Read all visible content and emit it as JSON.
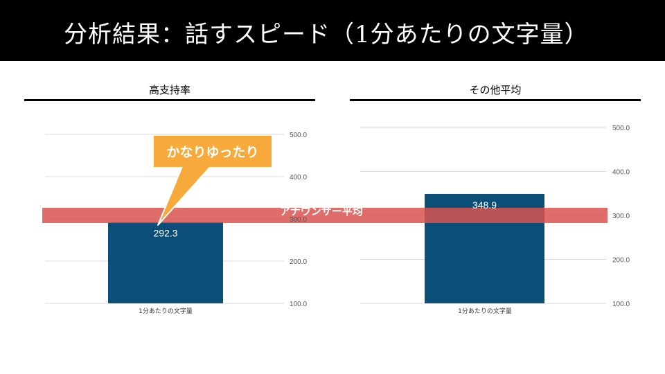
{
  "header": {
    "title": "分析結果：話すスピード（1分あたりの文字量）"
  },
  "annotations": {
    "callout": "かなりゆったり",
    "average_line_label": "アナウンサー平均",
    "average_line_value": 300
  },
  "colors": {
    "bar": "#0b4f79",
    "average_band": "#d9534f",
    "callout": "#f7a93b",
    "title_bar": "#000000"
  },
  "chart_data": [
    {
      "type": "bar",
      "title": "高支持率",
      "categories": [
        "1分あたりの文字量"
      ],
      "values": [
        292.3
      ],
      "data_labels": [
        "292.3"
      ],
      "yticks": [
        "100.0",
        "200.0",
        "300.0",
        "400.0",
        "500.0"
      ],
      "ylim": [
        100,
        500
      ],
      "grid": true,
      "y_axis_side": "right"
    },
    {
      "type": "bar",
      "title": "その他平均",
      "categories": [
        "1分あたりの文字量"
      ],
      "values": [
        348.9
      ],
      "data_labels": [
        "348.9"
      ],
      "yticks": [
        "100.0",
        "200.0",
        "300.0",
        "400.0",
        "500.0"
      ],
      "ylim": [
        100,
        500
      ],
      "grid": true,
      "y_axis_side": "right"
    }
  ]
}
